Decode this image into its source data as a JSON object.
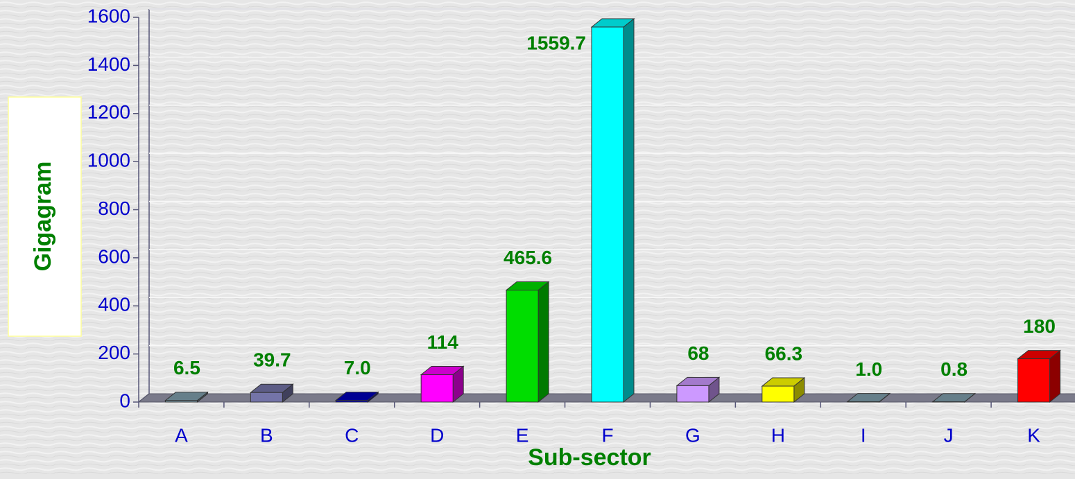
{
  "chart_data": {
    "type": "bar3d",
    "xlabel": "Sub-sector",
    "ylabel": "Gigagram",
    "categories": [
      "A",
      "B",
      "C",
      "D",
      "E",
      "F",
      "G",
      "H",
      "I",
      "J",
      "K"
    ],
    "values": [
      6.5,
      39.7,
      7.0,
      114,
      465.6,
      1559.7,
      68,
      66.3,
      1.0,
      0.8,
      180
    ],
    "value_labels": [
      "6.5",
      "39.7",
      "7.0",
      "114",
      "465.6",
      "1559.7",
      "68",
      "66.3",
      "1.0",
      "0.8",
      "180"
    ],
    "colors": [
      "#7f9fad",
      "#7474a8",
      "#0000b8",
      "#ff00ff",
      "#00dd00",
      "#00ffff",
      "#cc99ff",
      "#ffff00",
      "#7f9fad",
      "#7f9fad",
      "#ff0000"
    ],
    "ylim": [
      0,
      1600
    ],
    "yticks": [
      0,
      200,
      400,
      600,
      800,
      1000,
      1200,
      1400,
      1600
    ],
    "grid": true
  }
}
